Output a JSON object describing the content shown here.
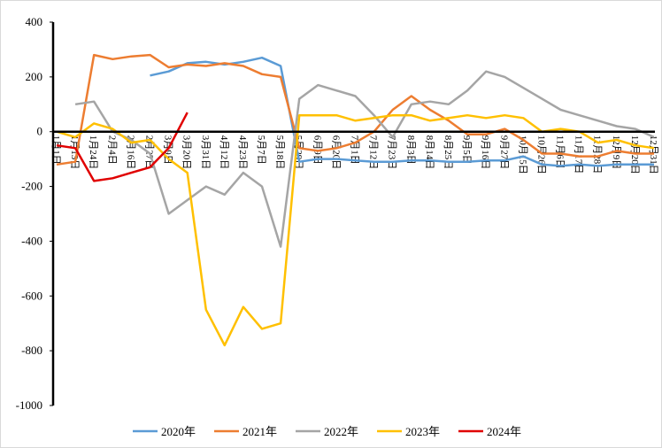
{
  "chart_data": {
    "type": "line",
    "categories": [
      "1月1日",
      "1月13日",
      "1月24日",
      "2月4日",
      "2月16日",
      "2月27日",
      "3月9日",
      "3月20日",
      "3月31日",
      "4月12日",
      "4月23日",
      "5月7日",
      "5月18日",
      "5月29日",
      "6月9日",
      "6月20日",
      "7月1日",
      "7月12日",
      "7月23日",
      "8月3日",
      "8月14日",
      "8月25日",
      "9月5日",
      "9月16日",
      "9月27日",
      "10月15日",
      "10月26日",
      "11月6日",
      "11月17日",
      "11月28日",
      "12月9日",
      "12月20日",
      "12月31日"
    ],
    "series": [
      {
        "name": "2020年",
        "color": "#5b9bd5",
        "values": [
          null,
          null,
          null,
          null,
          null,
          205,
          220,
          250,
          255,
          245,
          255,
          270,
          240,
          -110,
          -100,
          -100,
          -105,
          -110,
          -110,
          -105,
          -105,
          -110,
          -110,
          -105,
          -105,
          -90,
          -120,
          -125,
          -120,
          -125,
          -120,
          -120,
          -120
        ]
      },
      {
        "name": "2021年",
        "color": "#ed7d31",
        "values": [
          -120,
          -110,
          280,
          265,
          275,
          280,
          235,
          245,
          240,
          250,
          240,
          210,
          200,
          -60,
          -70,
          -60,
          -40,
          0,
          80,
          130,
          80,
          40,
          -10,
          -10,
          10,
          -30,
          -80,
          -80,
          -90,
          -90,
          -70,
          -80,
          -80
        ]
      },
      {
        "name": "2022年",
        "color": "#a5a5a5",
        "values": [
          null,
          100,
          110,
          0,
          -30,
          -80,
          -300,
          -250,
          -200,
          -230,
          -150,
          -200,
          -420,
          120,
          170,
          150,
          130,
          60,
          -20,
          100,
          110,
          100,
          150,
          220,
          200,
          160,
          120,
          80,
          60,
          40,
          20,
          10,
          -20
        ]
      },
      {
        "name": "2023年",
        "color": "#ffc000",
        "values": [
          0,
          -20,
          30,
          10,
          -40,
          -30,
          -100,
          -150,
          -650,
          -780,
          -640,
          -720,
          -700,
          60,
          60,
          60,
          40,
          50,
          60,
          60,
          40,
          50,
          60,
          50,
          60,
          50,
          0,
          10,
          0,
          -40,
          -30,
          -50,
          -60
        ]
      },
      {
        "name": "2024年",
        "color": "#e00000",
        "values": [
          -50,
          -60,
          -180,
          -170,
          -150,
          -130,
          -60,
          70,
          null,
          null,
          null,
          null,
          null,
          null,
          null,
          null,
          null,
          null,
          null,
          null,
          null,
          null,
          null,
          null,
          null,
          null,
          null,
          null,
          null,
          null,
          null,
          null,
          null
        ]
      }
    ],
    "ylim": [
      -1000,
      400
    ],
    "yticks": [
      400,
      200,
      0,
      -200,
      -400,
      -600,
      -800,
      -1000
    ]
  }
}
